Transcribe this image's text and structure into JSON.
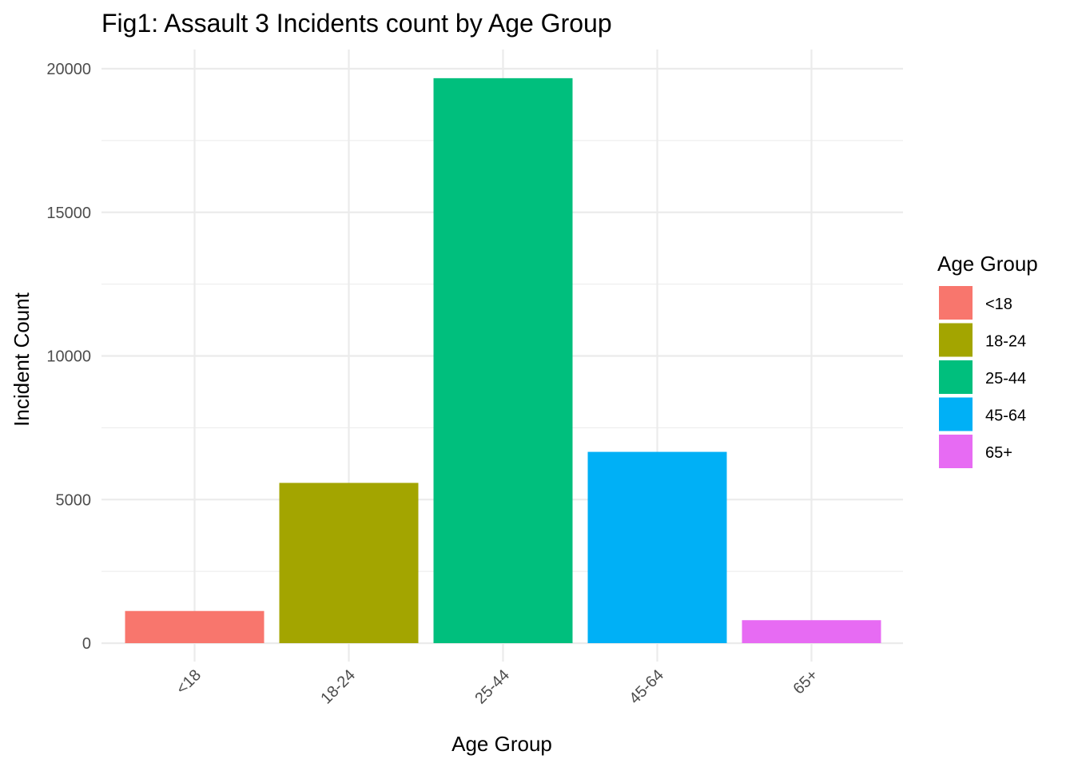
{
  "chart_data": {
    "type": "bar",
    "title": "Fig1: Assault 3 Incidents count by Age Group",
    "xlabel": "Age Group",
    "ylabel": "Incident Count",
    "categories": [
      "<18",
      "18-24",
      "25-44",
      "45-64",
      "65+"
    ],
    "values": [
      1120,
      5580,
      19670,
      6660,
      800
    ],
    "ylim": [
      0,
      20000
    ],
    "yticks": [
      0,
      5000,
      10000,
      15000,
      20000
    ],
    "ytick_labels": [
      "0",
      "5000",
      "10000",
      "15000",
      "20000"
    ],
    "colors": [
      "#F8766D",
      "#A3A500",
      "#00BF7D",
      "#00B0F6",
      "#E76BF3"
    ],
    "legend": {
      "title": "Age Group",
      "position": "right",
      "entries": [
        "<18",
        "18-24",
        "25-44",
        "45-64",
        "65+"
      ]
    },
    "grid": true,
    "x_tick_rotation": "45 degrees"
  }
}
